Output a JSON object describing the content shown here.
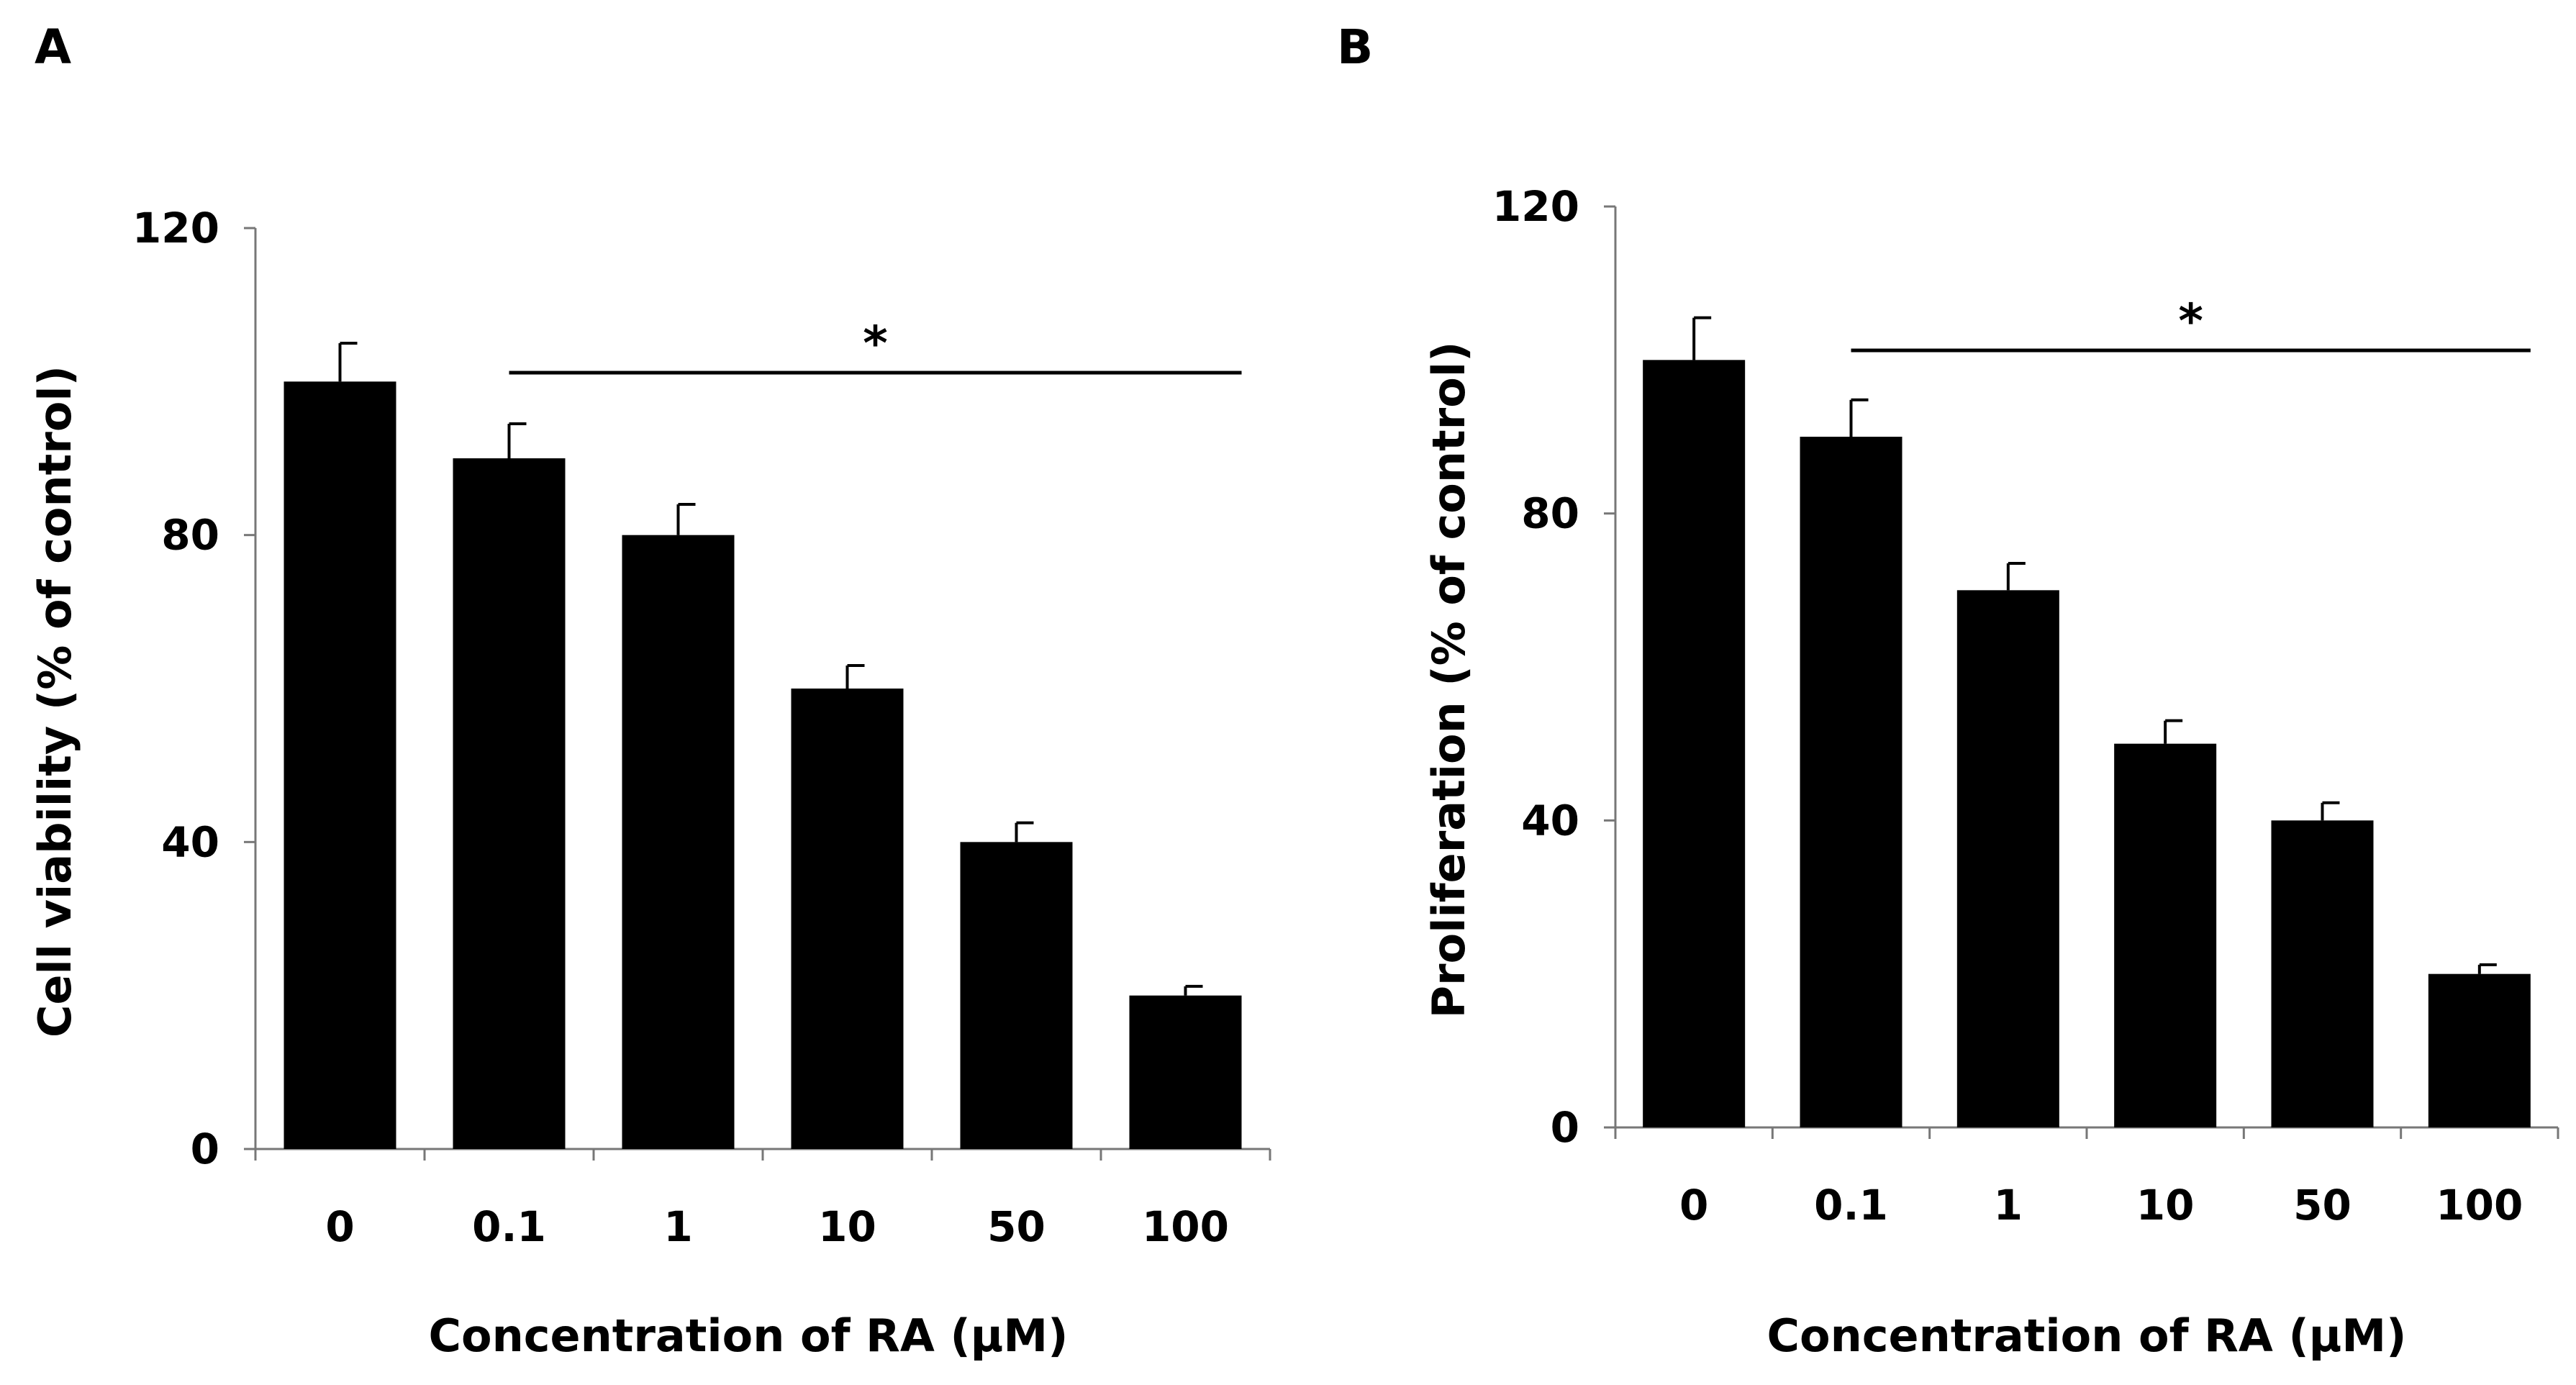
{
  "colors": {
    "bar": "#000000",
    "axis": "#777777",
    "text": "#000000"
  },
  "chart_data": [
    {
      "panel": "A",
      "type": "bar",
      "xlabel": "Concentration  of RA (μM)",
      "ylabel": "Cell viability (% of control)",
      "categories": [
        "0",
        "0.1",
        "1",
        "10",
        "50",
        "100"
      ],
      "values": [
        100,
        90,
        80,
        60,
        40,
        20
      ],
      "errors": [
        5,
        4.5,
        4,
        3,
        2.5,
        1.2
      ],
      "ylim": [
        0,
        120
      ],
      "yticks": [
        0,
        40,
        80,
        120
      ],
      "significance": {
        "symbol": "*",
        "from_category": "0.1",
        "to_category": "100"
      }
    },
    {
      "panel": "B",
      "type": "bar",
      "xlabel": "Concentration  of RA (μM)",
      "ylabel": "Proliferation (% of control)",
      "categories": [
        "0",
        "0.1",
        "1",
        "10",
        "50",
        "100"
      ],
      "values": [
        100,
        90,
        70,
        50,
        40,
        20
      ],
      "errors": [
        5.5,
        4.8,
        3.5,
        3,
        2.3,
        1.2
      ],
      "ylim": [
        0,
        120
      ],
      "yticks": [
        0,
        40,
        80,
        120
      ],
      "significance": {
        "symbol": "*",
        "from_category": "0.1",
        "to_category": "100"
      }
    }
  ]
}
